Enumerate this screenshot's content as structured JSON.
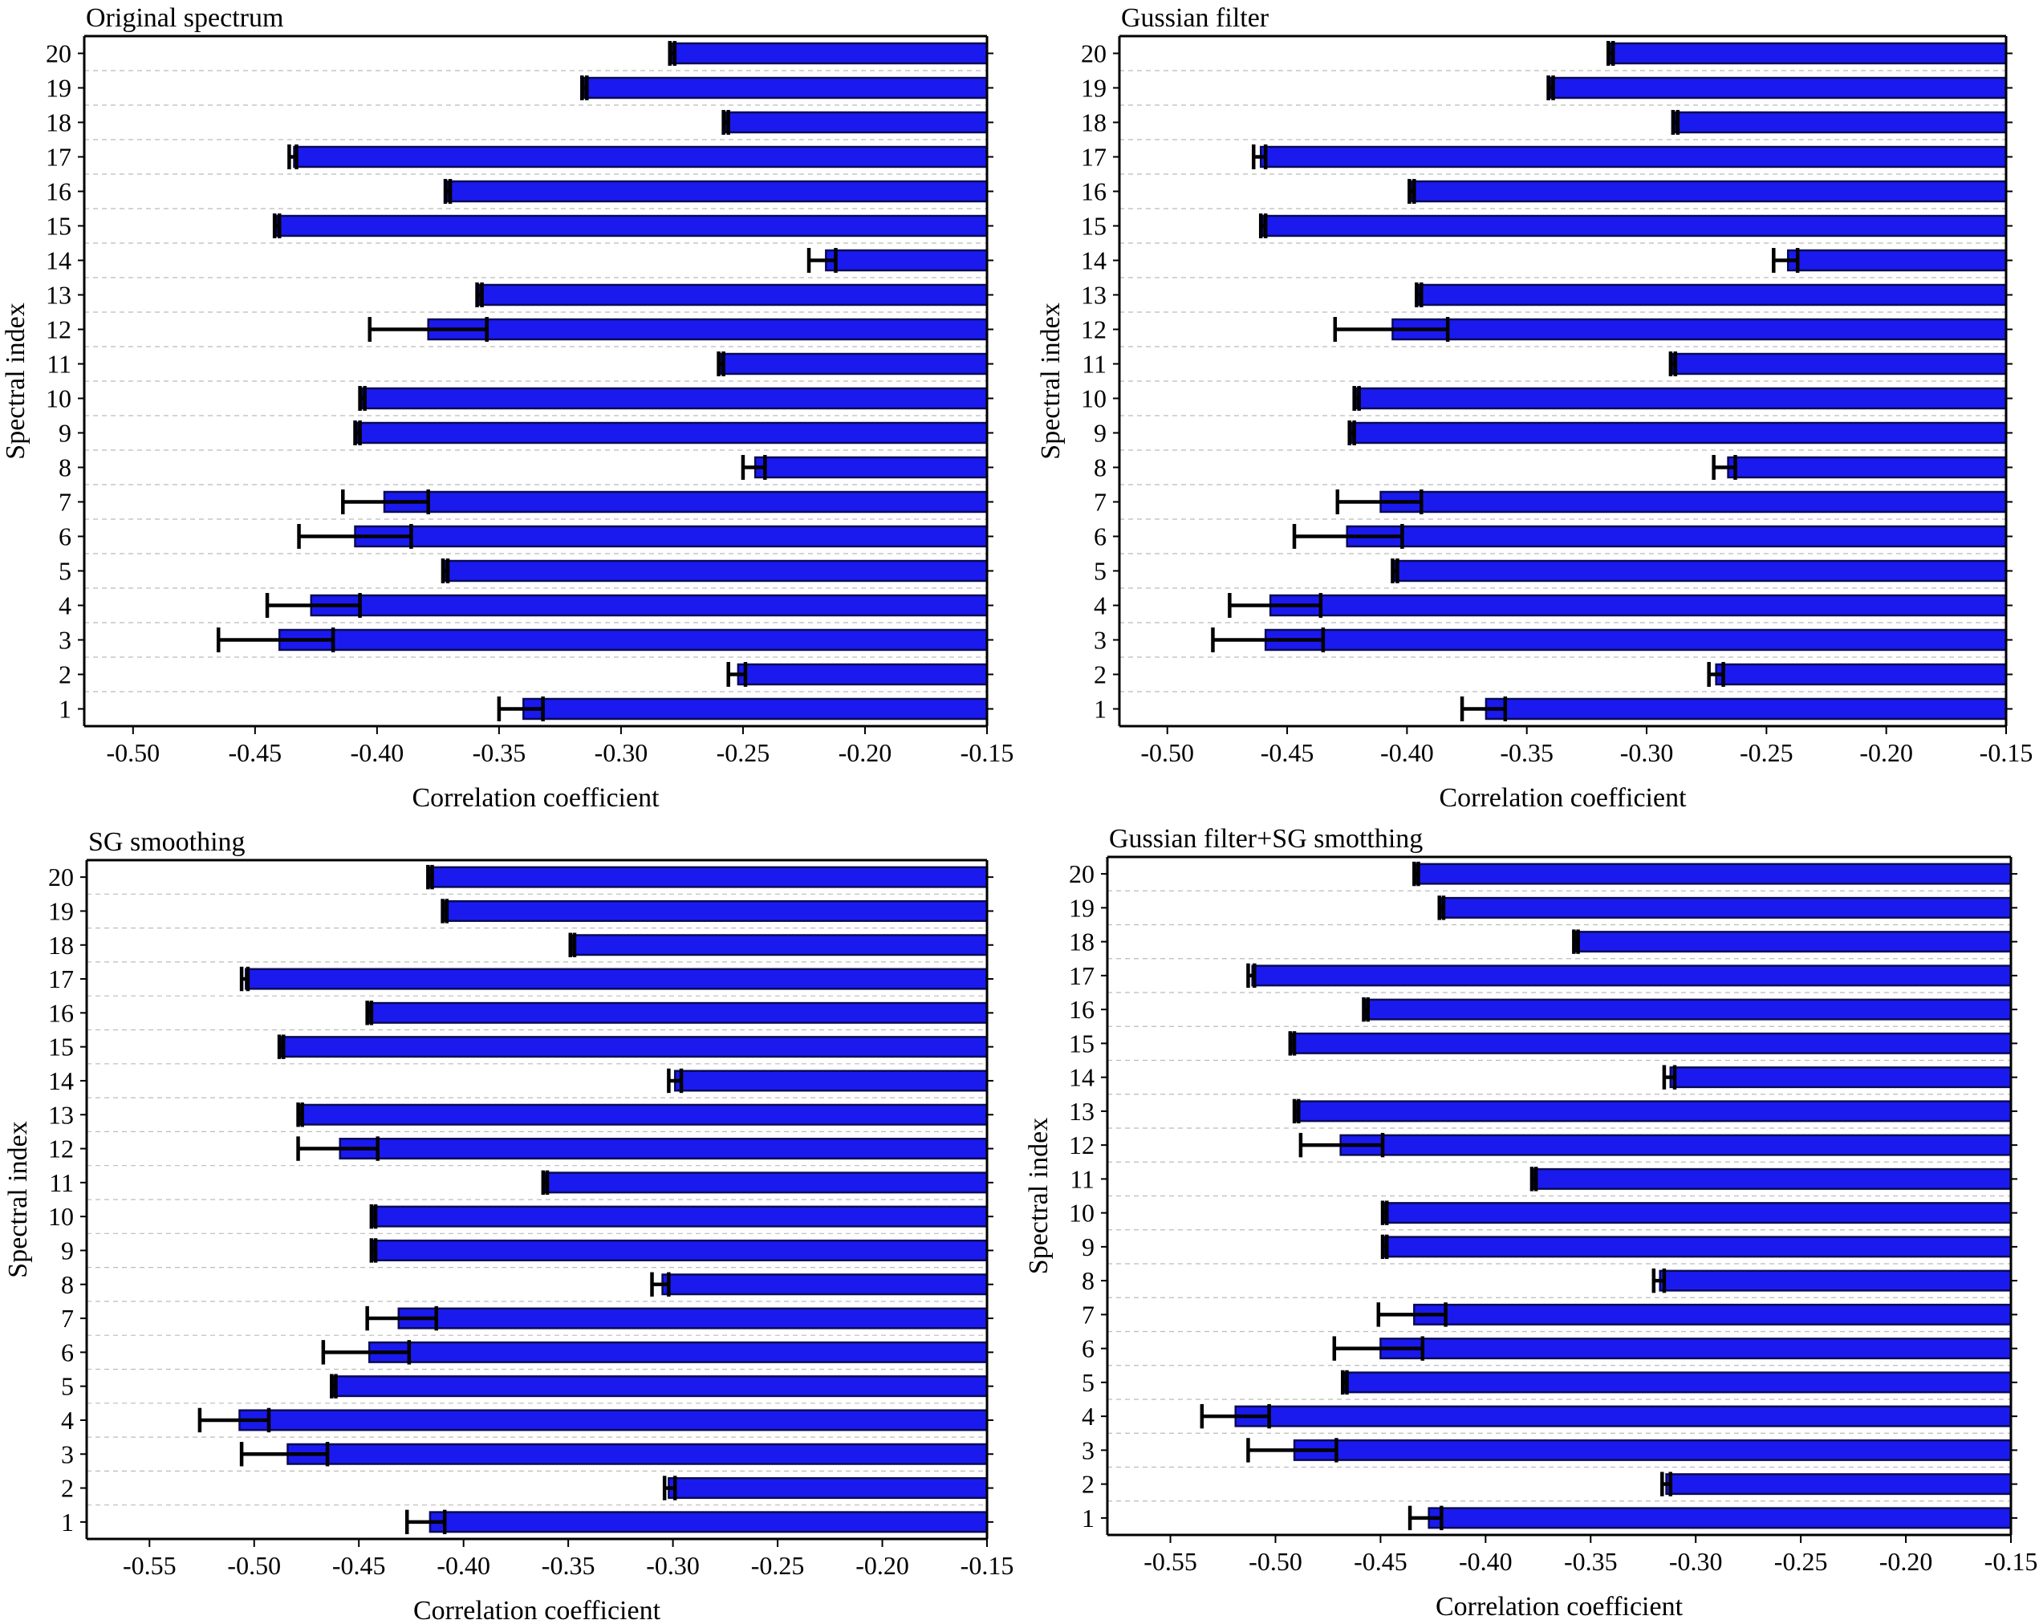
{
  "figure": {
    "bar_fill": "#1a1aee",
    "bar_edge": "#0a0a55",
    "error_color": "#000000",
    "grid_color": "#bbbbbb"
  },
  "chart_data": [
    {
      "type": "bar",
      "orientation": "horizontal",
      "title": "Original spectrum",
      "xlabel": "Correlation coefficient",
      "ylabel": "Spectral index",
      "categories": [
        "1",
        "2",
        "3",
        "4",
        "5",
        "6",
        "7",
        "8",
        "9",
        "10",
        "11",
        "12",
        "13",
        "14",
        "15",
        "16",
        "17",
        "18",
        "19",
        "20"
      ],
      "xlim": [
        -0.52,
        -0.15
      ],
      "xticks": [
        -0.5,
        -0.45,
        -0.4,
        -0.35,
        -0.3,
        -0.25,
        -0.2,
        -0.15
      ],
      "xtick_labels": [
        "-0.50",
        "-0.45",
        "-0.40",
        "-0.35",
        "-0.30",
        "-0.25",
        "-0.20",
        "-0.15"
      ],
      "values": [
        -0.34,
        -0.252,
        -0.44,
        -0.427,
        -0.372,
        -0.409,
        -0.397,
        -0.245,
        -0.408,
        -0.406,
        -0.259,
        -0.379,
        -0.358,
        -0.216,
        -0.441,
        -0.371,
        -0.434,
        -0.257,
        -0.315,
        -0.279
      ],
      "error_low": [
        -0.35,
        -0.256,
        -0.465,
        -0.445,
        -0.373,
        -0.432,
        -0.414,
        -0.25,
        -0.409,
        -0.407,
        -0.26,
        -0.403,
        -0.359,
        -0.223,
        -0.442,
        -0.372,
        -0.436,
        -0.258,
        -0.316,
        -0.28
      ],
      "error_high": [
        -0.332,
        -0.249,
        -0.418,
        -0.407,
        -0.371,
        -0.386,
        -0.379,
        -0.241,
        -0.407,
        -0.405,
        -0.258,
        -0.355,
        -0.357,
        -0.212,
        -0.44,
        -0.37,
        -0.433,
        -0.256,
        -0.314,
        -0.278
      ],
      "grid": "horizontal dashed"
    },
    {
      "type": "bar",
      "orientation": "horizontal",
      "title": "Gussian filter",
      "xlabel": "Correlation coefficient",
      "ylabel": "Spectral index",
      "categories": [
        "1",
        "2",
        "3",
        "4",
        "5",
        "6",
        "7",
        "8",
        "9",
        "10",
        "11",
        "12",
        "13",
        "14",
        "15",
        "16",
        "17",
        "18",
        "19",
        "20"
      ],
      "xlim": [
        -0.52,
        -0.15
      ],
      "xticks": [
        -0.5,
        -0.45,
        -0.4,
        -0.35,
        -0.3,
        -0.25,
        -0.2,
        -0.15
      ],
      "xtick_labels": [
        "-0.50",
        "-0.45",
        "-0.40",
        "-0.35",
        "-0.30",
        "-0.25",
        "-0.20",
        "-0.15"
      ],
      "values": [
        -0.367,
        -0.271,
        -0.459,
        -0.457,
        -0.405,
        -0.425,
        -0.411,
        -0.266,
        -0.423,
        -0.421,
        -0.289,
        -0.406,
        -0.395,
        -0.241,
        -0.46,
        -0.398,
        -0.461,
        -0.288,
        -0.34,
        -0.315
      ],
      "error_low": [
        -0.377,
        -0.274,
        -0.481,
        -0.474,
        -0.406,
        -0.447,
        -0.429,
        -0.272,
        -0.424,
        -0.422,
        -0.29,
        -0.43,
        -0.396,
        -0.247,
        -0.461,
        -0.399,
        -0.464,
        -0.289,
        -0.341,
        -0.316
      ],
      "error_high": [
        -0.359,
        -0.268,
        -0.435,
        -0.436,
        -0.404,
        -0.402,
        -0.394,
        -0.263,
        -0.422,
        -0.42,
        -0.288,
        -0.383,
        -0.394,
        -0.237,
        -0.459,
        -0.397,
        -0.459,
        -0.287,
        -0.339,
        -0.314
      ],
      "grid": "horizontal dashed"
    },
    {
      "type": "bar",
      "orientation": "horizontal",
      "title": "SG smoothing",
      "xlabel": "Correlation coefficient",
      "ylabel": "Spectral index",
      "categories": [
        "1",
        "2",
        "3",
        "4",
        "5",
        "6",
        "7",
        "8",
        "9",
        "10",
        "11",
        "12",
        "13",
        "14",
        "15",
        "16",
        "17",
        "18",
        "19",
        "20"
      ],
      "xlim": [
        -0.58,
        -0.15
      ],
      "xticks": [
        -0.55,
        -0.5,
        -0.45,
        -0.4,
        -0.35,
        -0.3,
        -0.25,
        -0.2,
        -0.15
      ],
      "xtick_labels": [
        "-0.55",
        "-0.50",
        "-0.45",
        "-0.40",
        "-0.35",
        "-0.30",
        "-0.25",
        "-0.20",
        "-0.15"
      ],
      "values": [
        -0.416,
        -0.302,
        -0.484,
        -0.507,
        -0.462,
        -0.445,
        -0.431,
        -0.305,
        -0.443,
        -0.443,
        -0.361,
        -0.459,
        -0.478,
        -0.299,
        -0.487,
        -0.445,
        -0.504,
        -0.348,
        -0.409,
        -0.416
      ],
      "error_low": [
        -0.427,
        -0.304,
        -0.506,
        -0.526,
        -0.463,
        -0.467,
        -0.446,
        -0.31,
        -0.444,
        -0.444,
        -0.362,
        -0.479,
        -0.479,
        -0.302,
        -0.488,
        -0.446,
        -0.506,
        -0.349,
        -0.41,
        -0.417
      ],
      "error_high": [
        -0.409,
        -0.299,
        -0.465,
        -0.493,
        -0.461,
        -0.426,
        -0.413,
        -0.302,
        -0.442,
        -0.442,
        -0.36,
        -0.441,
        -0.477,
        -0.296,
        -0.486,
        -0.444,
        -0.503,
        -0.347,
        -0.408,
        -0.415
      ],
      "grid": "horizontal dashed"
    },
    {
      "type": "bar",
      "orientation": "horizontal",
      "title": "Gussian filter+SG smotthing",
      "xlabel": "Correlation coefficient",
      "ylabel": "Spectral index",
      "categories": [
        "1",
        "2",
        "3",
        "4",
        "5",
        "6",
        "7",
        "8",
        "9",
        "10",
        "11",
        "12",
        "13",
        "14",
        "15",
        "16",
        "17",
        "18",
        "19",
        "20"
      ],
      "xlim": [
        -0.58,
        -0.15
      ],
      "xticks": [
        -0.55,
        -0.5,
        -0.45,
        -0.4,
        -0.35,
        -0.3,
        -0.25,
        -0.2,
        -0.15
      ],
      "xtick_labels": [
        "-0.55",
        "-0.50",
        "-0.45",
        "-0.40",
        "-0.35",
        "-0.30",
        "-0.25",
        "-0.20",
        "-0.15"
      ],
      "values": [
        -0.427,
        -0.314,
        -0.491,
        -0.519,
        -0.467,
        -0.45,
        -0.434,
        -0.317,
        -0.448,
        -0.448,
        -0.377,
        -0.469,
        -0.49,
        -0.312,
        -0.492,
        -0.457,
        -0.511,
        -0.357,
        -0.421,
        -0.433
      ],
      "error_low": [
        -0.436,
        -0.316,
        -0.513,
        -0.535,
        -0.468,
        -0.472,
        -0.451,
        -0.32,
        -0.449,
        -0.449,
        -0.378,
        -0.488,
        -0.491,
        -0.315,
        -0.493,
        -0.458,
        -0.513,
        -0.358,
        -0.422,
        -0.434
      ],
      "error_high": [
        -0.421,
        -0.312,
        -0.471,
        -0.503,
        -0.466,
        -0.43,
        -0.419,
        -0.315,
        -0.447,
        -0.447,
        -0.376,
        -0.449,
        -0.489,
        -0.31,
        -0.491,
        -0.456,
        -0.51,
        -0.356,
        -0.42,
        -0.432
      ],
      "grid": "horizontal dashed"
    }
  ]
}
